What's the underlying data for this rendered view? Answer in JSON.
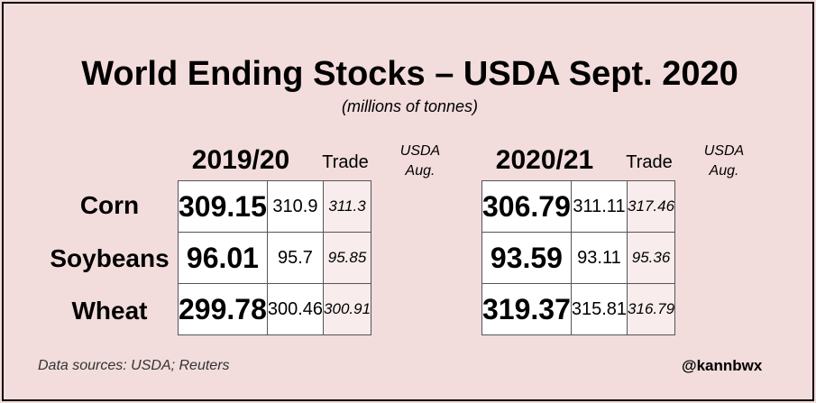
{
  "chart_data": {
    "type": "table",
    "title": "World Ending Stocks – USDA Sept. 2020",
    "subtitle": "(millions of tonnes)",
    "rows": [
      "Corn",
      "Soybeans",
      "Wheat"
    ],
    "columns": [
      "Trade",
      "USDA Aug."
    ],
    "groups": [
      {
        "year": "2019/20",
        "trade_label": "Trade",
        "usda_label_1": "USDA",
        "usda_label_2": "Aug.",
        "values": [
          {
            "main": "309.15",
            "trade": "310.9",
            "usda": "311.3"
          },
          {
            "main": "96.01",
            "trade": "95.7",
            "usda": "95.85"
          },
          {
            "main": "299.78",
            "trade": "300.46",
            "usda": "300.91"
          }
        ]
      },
      {
        "year": "2020/21",
        "trade_label": "Trade",
        "usda_label_1": "USDA",
        "usda_label_2": "Aug.",
        "values": [
          {
            "main": "306.79",
            "trade": "311.11",
            "usda": "317.46"
          },
          {
            "main": "93.59",
            "trade": "93.11",
            "usda": "95.36"
          },
          {
            "main": "319.37",
            "trade": "315.81",
            "usda": "316.79"
          }
        ]
      }
    ]
  },
  "footer": {
    "source": "Data sources: USDA; Reuters",
    "handle": "@kannbwx"
  },
  "colors": {
    "background": "#f2dcdc",
    "usda_cell": "#f8ecec"
  }
}
